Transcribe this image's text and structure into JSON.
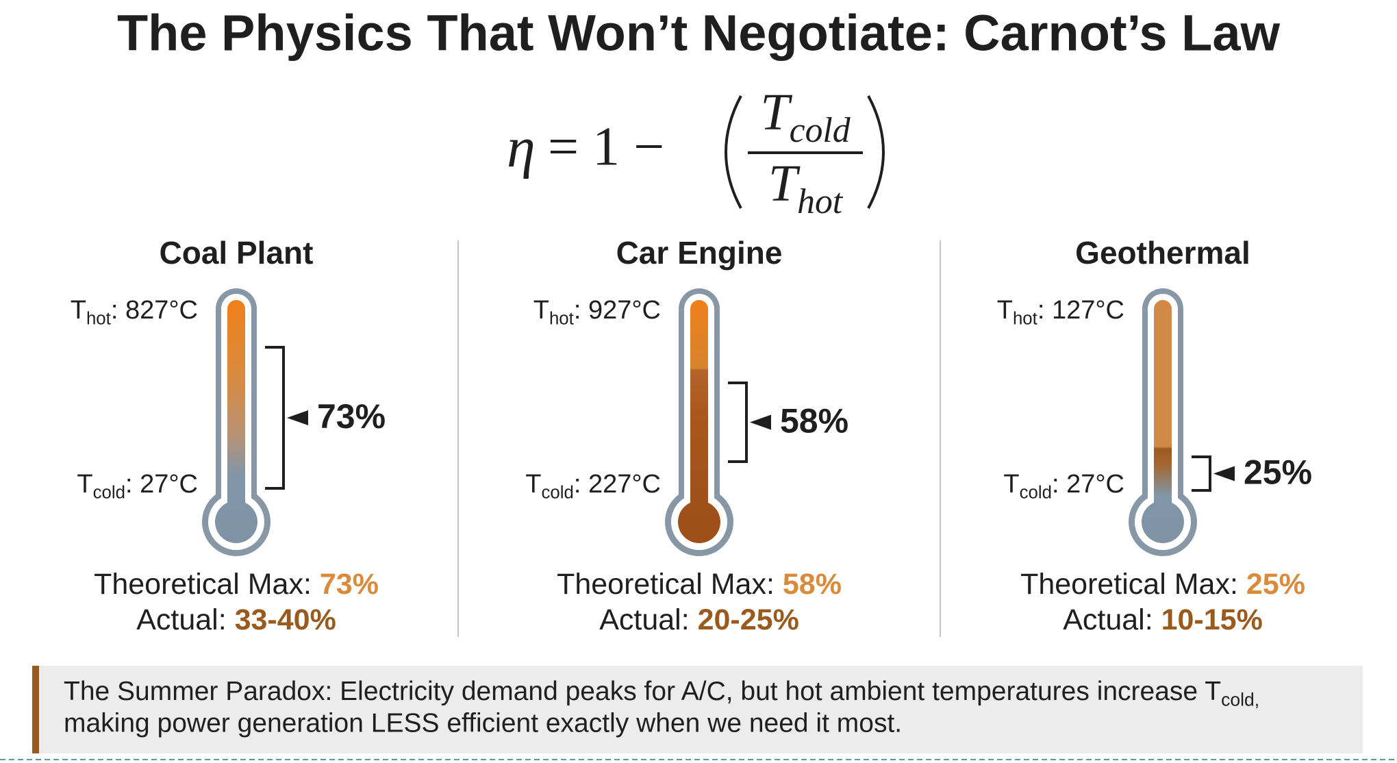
{
  "header": {
    "title": "The Physics That Won’t Negotiate: Carnot’s Law"
  },
  "formula": {
    "lhs": "η",
    "mid": "= 1 −",
    "num_base": "T",
    "num_sub": "cold",
    "den_base": "T",
    "den_sub": "hot"
  },
  "panels": [
    {
      "name": "Coal Plant",
      "hot": {
        "base": "T",
        "sub": "hot",
        "value": ": 827°C"
      },
      "cold": {
        "base": "T",
        "sub": "cold",
        "value": ": 27°C"
      },
      "efficiency": "73%",
      "theoretical_label": "Theoretical Max: ",
      "theoretical_value": "73%",
      "actual_label": "Actual: ",
      "actual_value": "33-40%"
    },
    {
      "name": "Car Engine",
      "hot": {
        "base": "T",
        "sub": "hot",
        "value": ": 927°C"
      },
      "cold": {
        "base": "T",
        "sub": "cold",
        "value": ": 227°C"
      },
      "efficiency": "58%",
      "theoretical_label": "Theoretical Max: ",
      "theoretical_value": "58%",
      "actual_label": "Actual: ",
      "actual_value": "20-25%"
    },
    {
      "name": "Geothermal",
      "hot": {
        "base": "T",
        "sub": "hot",
        "value": ": 127°C"
      },
      "cold": {
        "base": "T",
        "sub": "cold",
        "value": ": 27°C"
      },
      "efficiency": "25%",
      "theoretical_label": "Theoretical Max: ",
      "theoretical_value": "25%",
      "actual_label": "Actual: ",
      "actual_value": "10-15%"
    }
  ],
  "footer": {
    "line1": "The Summer Paradox: Electricity demand peaks for A/C, but hot ambient temperatures increase T",
    "line1_sub": "cold",
    "line1_end": ",",
    "line2": "making power generation LESS efficient exactly when we need it most."
  }
}
